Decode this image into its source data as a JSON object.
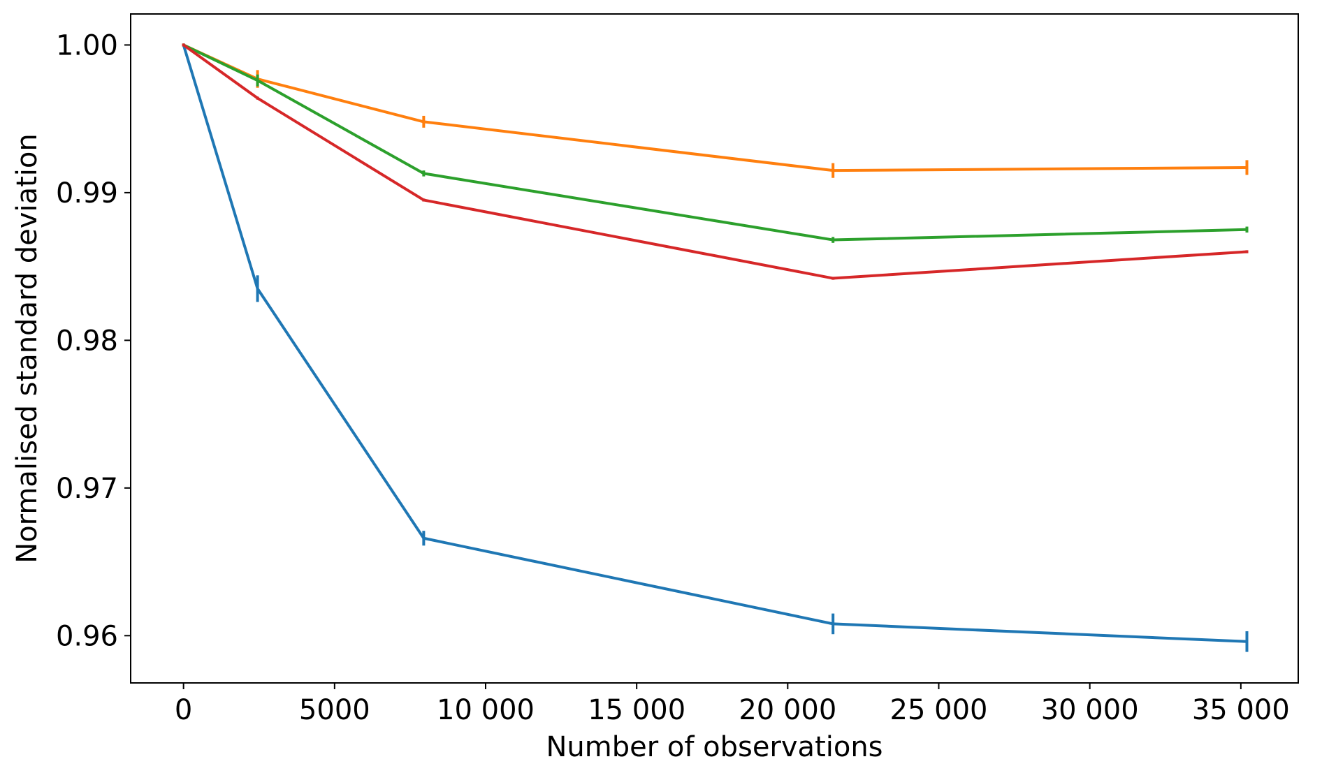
{
  "chart_data": {
    "type": "line",
    "title": "",
    "xlabel": "Number of observations",
    "ylabel": "Normalised standard deviation",
    "xlim": [
      -1750,
      36900
    ],
    "ylim": [
      0.9568,
      1.0021
    ],
    "xticks": [
      0,
      5000,
      10000,
      15000,
      20000,
      25000,
      30000,
      35000
    ],
    "xtick_labels": [
      "0",
      "5000",
      "10 000",
      "15 000",
      "20 000",
      "25 000",
      "30 000",
      "35 000"
    ],
    "yticks": [
      0.96,
      0.97,
      0.98,
      0.99,
      1.0
    ],
    "ytick_labels": [
      "0.96",
      "0.97",
      "0.98",
      "0.99",
      "1.00"
    ],
    "grid": false,
    "legend": "none",
    "x": [
      0,
      2450,
      7950,
      21500,
      35200
    ],
    "series": [
      {
        "color": "#1f77b4",
        "values": [
          1.0,
          0.9835,
          0.9666,
          0.9608,
          0.9596
        ],
        "errors": [
          0,
          0.0009,
          0.0005,
          0.0007,
          0.0007
        ]
      },
      {
        "color": "#ff7f0e",
        "values": [
          1.0,
          0.9977,
          0.9948,
          0.9915,
          0.9917
        ],
        "errors": [
          0,
          0.0006,
          0.0004,
          0.0005,
          0.0005
        ]
      },
      {
        "color": "#2ca02c",
        "values": [
          1.0,
          0.9976,
          0.9913,
          0.9868,
          0.9875
        ],
        "errors": [
          0,
          0.0004,
          0.0002,
          0.0002,
          0.0002
        ]
      },
      {
        "color": "#d62728",
        "values": [
          1.0,
          0.9964,
          0.9895,
          0.9842,
          0.986
        ],
        "errors": [
          0,
          0.0001,
          0.0001,
          0.0001,
          0.0001
        ]
      }
    ]
  }
}
